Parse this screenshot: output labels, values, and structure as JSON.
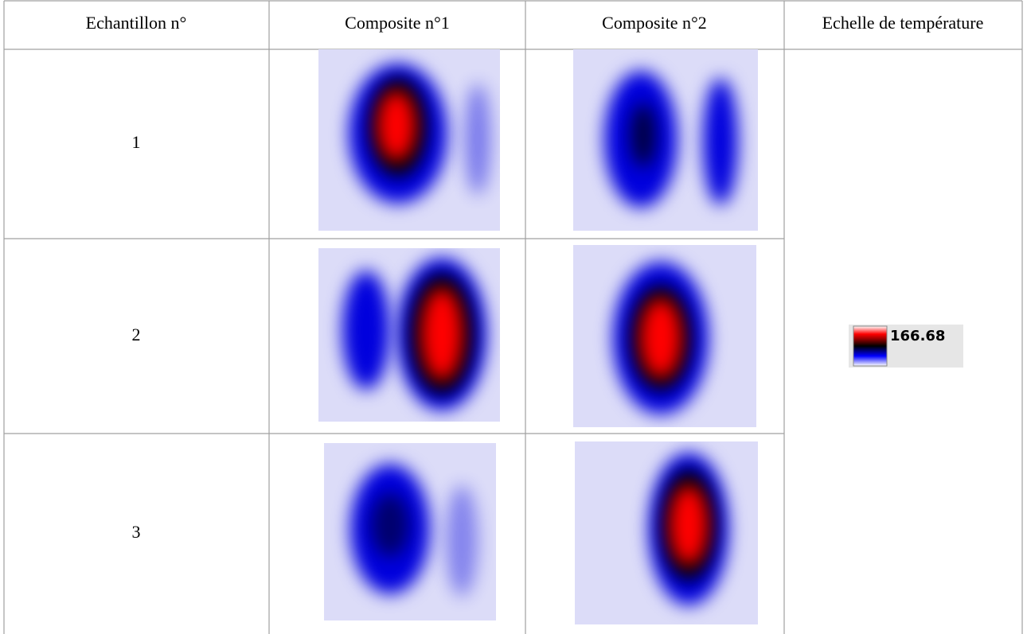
{
  "table": {
    "header": [
      "Echantillon n°",
      "Composite n°1",
      "Composite n°2",
      "Echelle de température"
    ],
    "rows": [
      [
        "1"
      ],
      [
        "2"
      ],
      [
        "3"
      ]
    ]
  },
  "scale_label": "166.68"
}
